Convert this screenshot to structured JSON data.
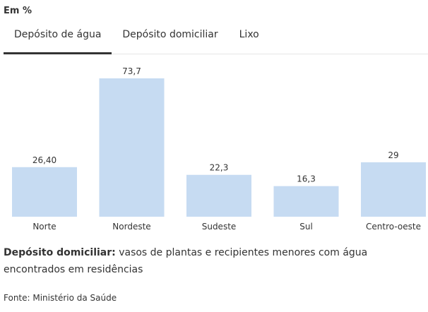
{
  "unit_label": "Em %",
  "tabs": [
    {
      "label": "Depósito de água",
      "active": true
    },
    {
      "label": "Depósito domiciliar",
      "active": false
    },
    {
      "label": "Lixo",
      "active": false
    }
  ],
  "chart_data": {
    "type": "bar",
    "categories": [
      "Norte",
      "Nordeste",
      "Sudeste",
      "Sul",
      "Centro-oeste"
    ],
    "values": [
      26.4,
      73.7,
      22.3,
      16.3,
      29
    ],
    "value_labels": [
      "26,40",
      "73,7",
      "22,3",
      "16,3",
      "29"
    ],
    "ylim": [
      0,
      73.7
    ],
    "grid": false,
    "bar_color": "#c6dbf2"
  },
  "note": {
    "term": "Depósito domiciliar:",
    "text": " vasos de plantas e recipientes menores com água encontrados em residências"
  },
  "source": "Fonte: Ministério da Saúde"
}
